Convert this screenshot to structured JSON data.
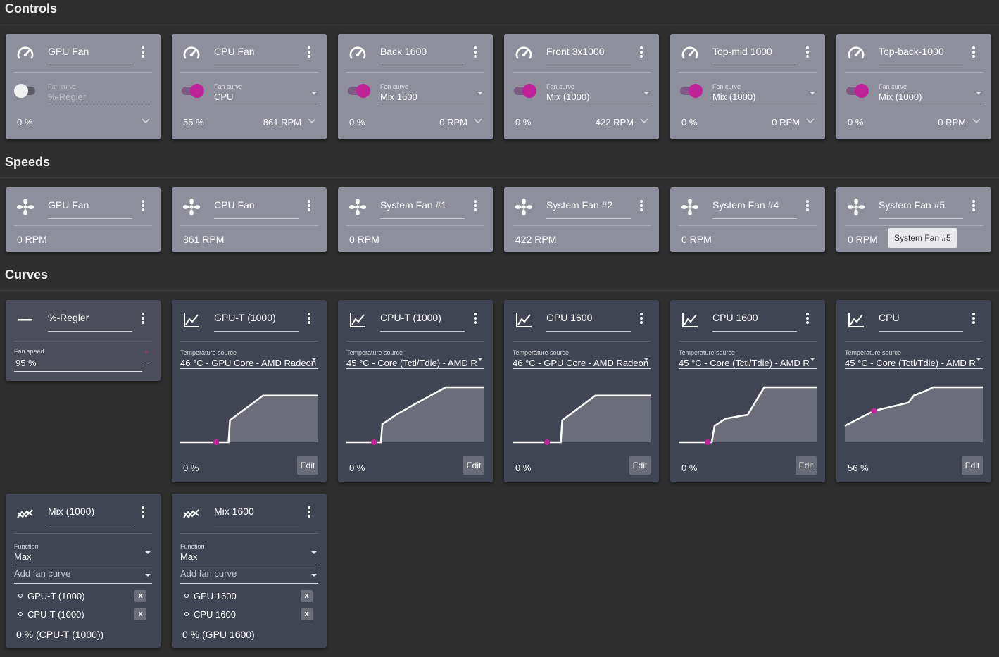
{
  "sections": {
    "controls": "Controls",
    "speeds": "Speeds",
    "curves": "Curves"
  },
  "colors": {
    "accent": "#c1229a",
    "card_light": "#8e8f9d",
    "card_dark": "#414453",
    "background": "#2e2e2e"
  },
  "controls": [
    {
      "name": "GPU Fan",
      "icon": "gauge-icon",
      "enabled": false,
      "curve_label": "Fan curve",
      "curve_value": "%-Regler",
      "percent": "0 %",
      "rpm": ""
    },
    {
      "name": "CPU Fan",
      "icon": "gauge-icon",
      "enabled": true,
      "curve_label": "Fan curve",
      "curve_value": "CPU",
      "percent": "55 %",
      "rpm": "861 RPM"
    },
    {
      "name": "Back 1600",
      "icon": "gauge-icon",
      "enabled": true,
      "curve_label": "Fan curve",
      "curve_value": "Mix 1600",
      "percent": "0 %",
      "rpm": "0 RPM"
    },
    {
      "name": "Front 3x1000",
      "icon": "gauge-icon",
      "enabled": true,
      "curve_label": "Fan curve",
      "curve_value": "Mix (1000)",
      "percent": "0 %",
      "rpm": "422 RPM"
    },
    {
      "name": "Top-mid 1000",
      "icon": "gauge-icon",
      "enabled": true,
      "curve_label": "Fan curve",
      "curve_value": "Mix (1000)",
      "percent": "0 %",
      "rpm": "0 RPM"
    },
    {
      "name": "Top-back-1000",
      "icon": "gauge-icon",
      "enabled": true,
      "curve_label": "Fan curve",
      "curve_value": "Mix (1000)",
      "percent": "0 %",
      "rpm": "0 RPM"
    }
  ],
  "speeds": [
    {
      "name": "GPU Fan",
      "icon": "fan-icon",
      "rpm": "0 RPM"
    },
    {
      "name": "CPU Fan",
      "icon": "fan-icon",
      "rpm": "861 RPM"
    },
    {
      "name": "System Fan #1",
      "icon": "fan-icon",
      "rpm": "0 RPM"
    },
    {
      "name": "System Fan #2",
      "icon": "fan-icon",
      "rpm": "422 RPM"
    },
    {
      "name": "System Fan #4",
      "icon": "fan-icon",
      "rpm": "0 RPM"
    },
    {
      "name": "System Fan #5",
      "icon": "fan-icon",
      "rpm": "0 RPM",
      "tooltip": "System Fan #5"
    }
  ],
  "manual_curve": {
    "name": "%-Regler",
    "icon": "minus-icon",
    "speed_label": "Fan speed",
    "speed_value": "95 %",
    "plus": "+",
    "minus": "-"
  },
  "graph_curves": [
    {
      "name": "GPU-T (1000)",
      "icon": "graph-icon",
      "source_label": "Temperature source",
      "source_value": "46 °C - GPU Core - AMD Radeon",
      "percent": "0 %",
      "edit": "Edit",
      "points": [
        [
          0,
          0
        ],
        [
          0.35,
          0
        ],
        [
          0.36,
          0.4
        ],
        [
          0.6,
          0.85
        ],
        [
          1,
          0.85
        ]
      ],
      "current": [
        0.26,
        0
      ]
    },
    {
      "name": "CPU-T (1000)",
      "icon": "graph-icon",
      "source_label": "Temperature source",
      "source_value": "45 °C - Core (Tctl/Tdie) - AMD R",
      "percent": "0 %",
      "edit": "Edit",
      "points": [
        [
          0,
          0
        ],
        [
          0.25,
          0
        ],
        [
          0.26,
          0.33
        ],
        [
          0.36,
          0.5
        ],
        [
          0.5,
          0.7
        ],
        [
          0.72,
          1
        ],
        [
          1,
          1
        ]
      ],
      "current": [
        0.2,
        0
      ]
    },
    {
      "name": "GPU 1600",
      "icon": "graph-icon",
      "source_label": "Temperature source",
      "source_value": "46 °C - GPU Core - AMD Radeon",
      "percent": "0 %",
      "edit": "Edit",
      "points": [
        [
          0,
          0
        ],
        [
          0.35,
          0
        ],
        [
          0.36,
          0.4
        ],
        [
          0.6,
          0.85
        ],
        [
          1,
          0.85
        ]
      ],
      "current": [
        0.25,
        0
      ]
    },
    {
      "name": "CPU 1600",
      "icon": "graph-icon",
      "source_label": "Temperature source",
      "source_value": "45 °C - Core (Tctl/Tdie) - AMD R",
      "percent": "0 %",
      "edit": "Edit",
      "points": [
        [
          0,
          0
        ],
        [
          0.24,
          0
        ],
        [
          0.26,
          0.3
        ],
        [
          0.34,
          0.43
        ],
        [
          0.5,
          0.5
        ],
        [
          0.62,
          1
        ],
        [
          1,
          1
        ]
      ],
      "current": [
        0.21,
        0
      ]
    },
    {
      "name": "CPU",
      "icon": "graph-icon",
      "source_label": "Temperature source",
      "source_value": "45 °C - Core (Tctl/Tdie) - AMD R",
      "percent": "56 %",
      "edit": "Edit",
      "points": [
        [
          0,
          0.3
        ],
        [
          0.21,
          0.57
        ],
        [
          0.46,
          0.72
        ],
        [
          0.5,
          0.85
        ],
        [
          0.6,
          0.95
        ],
        [
          0.64,
          1
        ],
        [
          1,
          1
        ]
      ],
      "current": [
        0.21,
        0.57
      ]
    }
  ],
  "mix_curves": [
    {
      "name": "Mix (1000)",
      "icon": "mix-icon",
      "function_label": "Function",
      "function_value": "Max",
      "add_placeholder": "Add fan curve",
      "sources": [
        "GPU-T (1000)",
        "CPU-T (1000)"
      ],
      "remove_label": "x",
      "status": "0 % (CPU-T (1000))"
    },
    {
      "name": "Mix 1600",
      "icon": "mix-icon",
      "function_label": "Function",
      "function_value": "Max",
      "add_placeholder": "Add fan curve",
      "sources": [
        "GPU 1600",
        "CPU 1600"
      ],
      "remove_label": "x",
      "status": "0 % (GPU 1600)"
    }
  ]
}
